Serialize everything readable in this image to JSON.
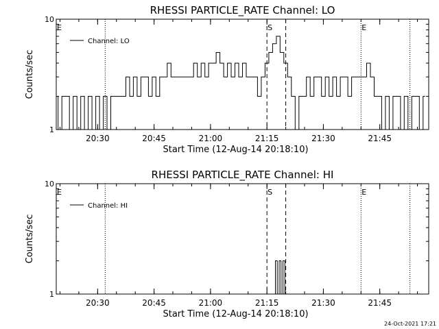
{
  "footer": {
    "timestamp": "24-Oct-2021 17:21"
  },
  "chart_data": [
    {
      "type": "line",
      "title": "RHESSI PARTICLE_RATE Channel: LO",
      "xlabel": "Start Time (12-Aug-14 20:18:10)",
      "ylabel": "Counts/sec",
      "yscale": "log",
      "ylim": [
        1,
        10
      ],
      "y_ticks": [
        {
          "value": 1,
          "label": "1"
        },
        {
          "value": 10,
          "label": "10"
        }
      ],
      "xlim": [
        "20:19",
        "21:58"
      ],
      "x_ticks": [
        {
          "time": "20:30",
          "label": "20:30"
        },
        {
          "time": "20:45",
          "label": "20:45"
        },
        {
          "time": "21:00",
          "label": "21:00"
        },
        {
          "time": "21:15",
          "label": "21:15"
        },
        {
          "time": "21:30",
          "label": "21:30"
        },
        {
          "time": "21:45",
          "label": "21:45"
        }
      ],
      "legend": "upper-left",
      "series": [
        {
          "name": "Channel: LO",
          "x": [
            "20:19",
            "20:20",
            "20:21",
            "20:22",
            "20:23",
            "20:24",
            "20:25",
            "20:26",
            "20:27",
            "20:28",
            "20:29",
            "20:30",
            "20:31",
            "20:32",
            "20:33",
            "20:34",
            "20:35",
            "20:36",
            "20:37",
            "20:38",
            "20:39",
            "20:40",
            "20:41",
            "20:42",
            "20:43",
            "20:44",
            "20:45",
            "20:46",
            "20:47",
            "20:48",
            "20:49",
            "20:50",
            "20:51",
            "20:52",
            "20:53",
            "20:54",
            "20:55",
            "20:56",
            "20:57",
            "20:58",
            "20:59",
            "21:00",
            "21:01",
            "21:02",
            "21:03",
            "21:04",
            "21:05",
            "21:06",
            "21:07",
            "21:08",
            "21:09",
            "21:10",
            "21:11",
            "21:12",
            "21:13",
            "21:14",
            "21:15",
            "21:16",
            "21:17",
            "21:18",
            "21:19",
            "21:20",
            "21:21",
            "21:22",
            "21:23",
            "21:24",
            "21:25",
            "21:26",
            "21:27",
            "21:28",
            "21:29",
            "21:30",
            "21:31",
            "21:32",
            "21:33",
            "21:34",
            "21:35",
            "21:36",
            "21:37",
            "21:38",
            "21:39",
            "21:40",
            "21:41",
            "21:42",
            "21:43",
            "21:44",
            "21:45",
            "21:46",
            "21:47",
            "21:48",
            "21:49",
            "21:50",
            "21:51",
            "21:52",
            "21:53",
            "21:54",
            "21:55",
            "21:56",
            "21:57"
          ],
          "values": [
            2,
            1,
            2,
            2,
            1,
            2,
            1,
            2,
            1,
            2,
            1,
            2,
            1,
            2,
            1,
            2,
            2,
            2,
            2,
            3,
            2,
            3,
            2,
            3,
            3,
            2,
            3,
            2,
            3,
            3,
            4,
            3,
            3,
            3,
            3,
            3,
            3,
            4,
            3,
            4,
            3,
            4,
            4,
            5,
            4,
            3,
            4,
            3,
            4,
            3,
            4,
            3,
            3,
            3,
            2,
            3,
            4,
            5,
            6,
            7,
            5,
            4,
            3,
            2,
            1,
            2,
            2,
            3,
            2,
            3,
            3,
            2,
            3,
            2,
            3,
            2,
            3,
            3,
            2,
            3,
            3,
            3,
            3,
            4,
            3,
            2,
            2,
            1,
            2,
            1,
            2,
            2,
            1,
            2,
            1,
            2,
            2,
            1,
            2
          ]
        }
      ],
      "markers": [
        {
          "label": "E",
          "time": "20:19",
          "style": "dotted"
        },
        {
          "label": "",
          "time": "20:32",
          "style": "dotted"
        },
        {
          "label": "S",
          "time": "21:15",
          "style": "dashed"
        },
        {
          "label": "",
          "time": "21:20",
          "style": "dashed"
        },
        {
          "label": "E",
          "time": "21:40",
          "style": "dotted"
        },
        {
          "label": "",
          "time": "21:53",
          "style": "dotted"
        }
      ]
    },
    {
      "type": "line",
      "title": "RHESSI PARTICLE_RATE Channel: HI",
      "xlabel": "Start Time (12-Aug-14 20:18:10)",
      "ylabel": "Counts/sec",
      "yscale": "log",
      "ylim": [
        1,
        10
      ],
      "y_ticks": [
        {
          "value": 1,
          "label": "1"
        },
        {
          "value": 10,
          "label": "10"
        }
      ],
      "xlim": [
        "20:19",
        "21:58"
      ],
      "x_ticks": [
        {
          "time": "20:30",
          "label": "20:30"
        },
        {
          "time": "20:45",
          "label": "20:45"
        },
        {
          "time": "21:00",
          "label": "21:00"
        },
        {
          "time": "21:15",
          "label": "21:15"
        },
        {
          "time": "21:30",
          "label": "21:30"
        },
        {
          "time": "21:45",
          "label": "21:45"
        }
      ],
      "legend": "upper-left",
      "series": [
        {
          "name": "Channel: HI",
          "x": [
            "21:17",
            "21:17.5",
            "21:18",
            "21:18.5",
            "21:19",
            "21:19.5",
            "21:20"
          ],
          "values": [
            1,
            2,
            1,
            2,
            1,
            2,
            1
          ]
        }
      ],
      "markers": [
        {
          "label": "E",
          "time": "20:19",
          "style": "dotted"
        },
        {
          "label": "",
          "time": "20:32",
          "style": "dotted"
        },
        {
          "label": "S",
          "time": "21:15",
          "style": "dashed"
        },
        {
          "label": "",
          "time": "21:20",
          "style": "dashed"
        },
        {
          "label": "E",
          "time": "21:40",
          "style": "dotted"
        },
        {
          "label": "",
          "time": "21:53",
          "style": "dotted"
        }
      ]
    }
  ]
}
